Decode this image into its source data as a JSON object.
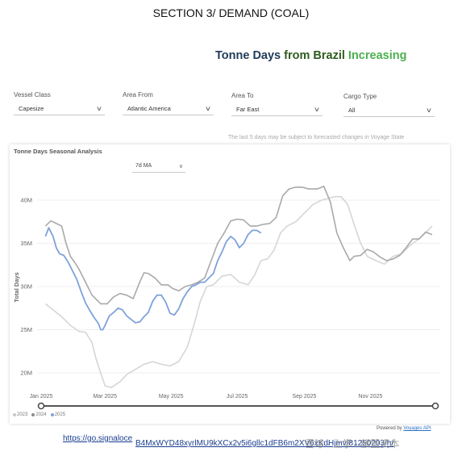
{
  "section_title": "SECTION 3/ DEMAND (COAL)",
  "report_title": {
    "part1": "Tonne Days",
    "part2": "from Brazil",
    "part3": "Increasing"
  },
  "filters": [
    {
      "label": "Vessel Class",
      "value": "Capesize"
    },
    {
      "label": "Area From",
      "value": "Atlantic America"
    },
    {
      "label": "Area To",
      "value": "Far East"
    },
    {
      "label": "Cargo Type",
      "value": "All"
    }
  ],
  "notice": "The last 5 days may be subject to forecasted changes in Voyage State",
  "panel_title": "Tonne Days Seasonal Analysis",
  "ma_select": "7d MA",
  "powered": {
    "prefix": "Powered by",
    "brand": "Voyages API"
  },
  "links": {
    "line1": "https://go.signaloce",
    "line2": "B4MxWYD48xyrlMU9kXCx2v5i6gllc1dFB6m2XV6xKdHjmv/81250203/h/"
  },
  "watermark": "雪球 · 上学 · 麟盟资本",
  "colors": {
    "series_2023": "#d3d3d3",
    "series_2024": "#a6a6a6",
    "series_2025": "#7fa1db",
    "navy": "#1f3b5a",
    "green": "#4caf50"
  },
  "chart_data": {
    "type": "line",
    "title": "Tonne Days Seasonal Analysis",
    "ylabel": "Total Days",
    "xlabel": "",
    "x_ticks": [
      "Jan 2025",
      "Mar 2025",
      "May 2025",
      "Jul 2025",
      "Sep 2025",
      "Nov 2025"
    ],
    "y_ticks": [
      "20M",
      "25M",
      "30M",
      "35M",
      "40M"
    ],
    "ylim": [
      18,
      43
    ],
    "x_unit": "day_of_year",
    "legend": [
      "2023",
      "2024",
      "2025"
    ],
    "series": [
      {
        "name": "2023",
        "x": [
          5,
          12,
          20,
          28,
          36,
          42,
          48,
          52,
          56,
          60,
          66,
          74,
          80,
          88,
          96,
          104,
          112,
          120,
          128,
          136,
          142,
          148,
          154,
          160,
          168,
          176,
          184,
          192,
          198,
          204,
          210,
          216,
          222,
          228,
          236,
          244,
          252,
          260,
          266,
          272,
          278,
          284,
          290,
          296,
          302,
          310,
          318,
          326,
          334,
          342,
          350,
          358,
          362
        ],
        "y": [
          28,
          27.3,
          26.5,
          25.5,
          24.8,
          24.7,
          23.5,
          21.5,
          20,
          18.5,
          18.3,
          19,
          19.8,
          20.4,
          21,
          21.3,
          21,
          20.8,
          21.3,
          23,
          25.5,
          28.3,
          30,
          30.2,
          31.2,
          31.4,
          30.5,
          30.2,
          31.3,
          33,
          33.2,
          34.2,
          36.2,
          37,
          37.5,
          38.5,
          39.5,
          40,
          40.2,
          40.4,
          40.4,
          39.5,
          37.2,
          35,
          33.5,
          33,
          32.6,
          33.5,
          33.8,
          34.8,
          35.5,
          36.5,
          37
        ]
      },
      {
        "name": "2024",
        "x": [
          5,
          10,
          15,
          20,
          24,
          28,
          32,
          36,
          42,
          48,
          56,
          62,
          68,
          74,
          80,
          86,
          92,
          96,
          100,
          106,
          112,
          118,
          122,
          128,
          134,
          140,
          146,
          152,
          158,
          164,
          170,
          176,
          182,
          188,
          194,
          200,
          206,
          212,
          218,
          224,
          230,
          236,
          242,
          248,
          256,
          262,
          268,
          274,
          280,
          286,
          290,
          296,
          302,
          308,
          314,
          320,
          326,
          332,
          338,
          344,
          350,
          356,
          362
        ],
        "y": [
          37,
          37.6,
          37.3,
          37,
          35,
          33.5,
          32.8,
          32,
          30.5,
          29,
          28,
          28,
          28.8,
          29.2,
          29,
          28.6,
          30.5,
          31.6,
          31.5,
          31,
          30.2,
          30.2,
          29.8,
          29.5,
          30,
          30.2,
          30.5,
          31,
          33,
          35,
          36.2,
          37.6,
          37.8,
          37.7,
          37,
          37,
          37.2,
          37.3,
          38,
          40.5,
          41.3,
          41.5,
          41.5,
          41.3,
          41.3,
          41.6,
          39.8,
          36.2,
          34.5,
          33,
          33.5,
          33.6,
          34.3,
          34,
          33.4,
          33,
          33.2,
          33.6,
          34.5,
          35.5,
          35.5,
          36.3,
          36
        ]
      },
      {
        "name": "2025",
        "x": [
          5,
          8,
          12,
          15,
          18,
          22,
          26,
          30,
          34,
          38,
          42,
          46,
          50,
          54,
          56,
          58,
          60,
          64,
          68,
          72,
          76,
          80,
          84,
          88,
          92,
          96,
          100,
          104,
          108,
          112,
          116,
          120,
          124,
          128,
          132,
          136,
          140,
          144,
          148,
          152,
          156,
          160,
          164,
          168,
          172,
          176,
          180,
          184,
          188,
          192,
          196,
          200,
          204
        ],
        "y": [
          35.8,
          36.8,
          35.8,
          34.5,
          33.8,
          33.6,
          32.8,
          31.8,
          30.8,
          29.4,
          28.1,
          27.2,
          26.4,
          25.7,
          25,
          25,
          25.5,
          26.6,
          27,
          27.5,
          27.3,
          26.6,
          26.2,
          25.8,
          25.9,
          26.5,
          27,
          28.3,
          29,
          29,
          28.2,
          26.9,
          26.7,
          27.4,
          28.6,
          29.4,
          30,
          30.2,
          30.5,
          30.5,
          31,
          31.5,
          33,
          34,
          35.2,
          35.8,
          35.4,
          34.5,
          35,
          36,
          36.5,
          36.5,
          36.2
        ]
      }
    ]
  }
}
